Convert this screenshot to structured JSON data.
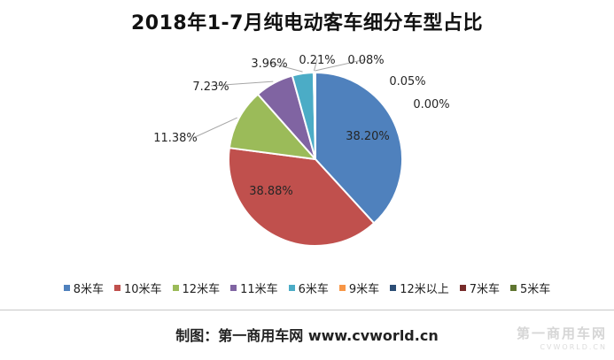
{
  "chart_data": {
    "type": "pie",
    "title": "2018年1-7月纯电动客车细分车型占比",
    "slices": [
      {
        "name": "8米车",
        "value": 38.2,
        "label": "38.20%",
        "color": "#4F81BD"
      },
      {
        "name": "10米车",
        "value": 38.88,
        "label": "38.88%",
        "color": "#C0504D"
      },
      {
        "name": "12米车",
        "value": 11.38,
        "label": "11.38%",
        "color": "#9BBB59"
      },
      {
        "name": "11米车",
        "value": 7.23,
        "label": "7.23%",
        "color": "#8064A2"
      },
      {
        "name": "6米车",
        "value": 3.96,
        "label": "3.96%",
        "color": "#4BACC6"
      },
      {
        "name": "9米车",
        "value": 0.21,
        "label": "0.21%",
        "color": "#F79646"
      },
      {
        "name": "12米以上",
        "value": 0.08,
        "label": "0.08%",
        "color": "#2C4D75"
      },
      {
        "name": "7米车",
        "value": 0.05,
        "label": "0.05%",
        "color": "#772C2A"
      },
      {
        "name": "5米车",
        "value": 0.0,
        "label": "0.00%",
        "color": "#5F7530"
      }
    ],
    "legend_position": "bottom"
  },
  "footer": {
    "credit": "制图：第一商用车网 www.cvworld.cn",
    "watermark": "第一商用车网",
    "watermark_sub": "CVWORLD.CN"
  }
}
